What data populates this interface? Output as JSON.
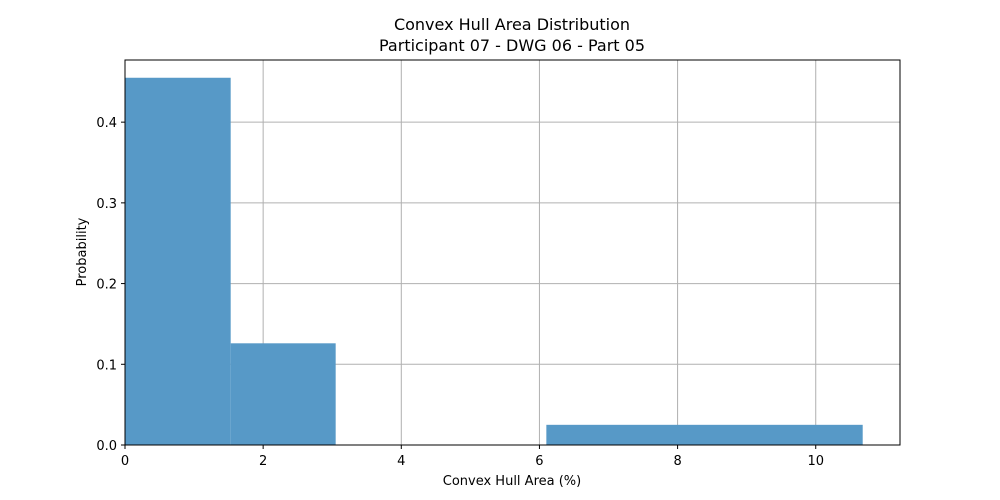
{
  "chart_data": {
    "type": "bar",
    "title": "Convex Hull Area Distribution",
    "subtitle": "Participant 07 - DWG 06 - Part 05",
    "xlabel": "Convex Hull Area (%)",
    "ylabel": "Probability",
    "xlim": [
      0,
      11.22
    ],
    "ylim": [
      0,
      0.477
    ],
    "xticks": [
      0,
      2,
      4,
      6,
      8,
      10
    ],
    "xtick_labels": [
      "0",
      "2",
      "4",
      "6",
      "8",
      "10"
    ],
    "yticks": [
      0.0,
      0.1,
      0.2,
      0.3,
      0.4
    ],
    "ytick_labels": [
      "0.0",
      "0.1",
      "0.2",
      "0.3",
      "0.4"
    ],
    "grid": true,
    "bar_color": "#5799c7",
    "bins": [
      {
        "x0": 0.0,
        "x1": 1.53,
        "value": 0.455
      },
      {
        "x0": 1.53,
        "x1": 3.05,
        "value": 0.126
      },
      {
        "x0": 3.05,
        "x1": 4.58,
        "value": 0.0
      },
      {
        "x0": 4.58,
        "x1": 6.1,
        "value": 0.0
      },
      {
        "x0": 6.1,
        "x1": 10.68,
        "value": 0.025
      }
    ]
  }
}
